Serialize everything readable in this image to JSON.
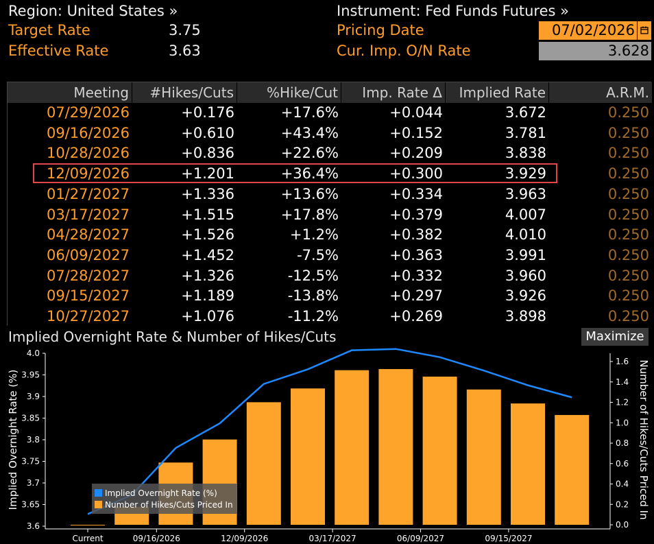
{
  "header": {
    "region_label": "Region: United States »",
    "instrument_label": "Instrument: Fed Funds Futures »",
    "target_rate_label": "Target Rate",
    "target_rate_value": "3.75",
    "effective_rate_label": "Effective Rate",
    "effective_rate_value": "3.63",
    "pricing_date_label": "Pricing Date",
    "pricing_date_value": "07/02/2026",
    "cur_imp_label": "Cur. Imp. O/N Rate",
    "cur_imp_value": "3.628",
    "calendar_icon": "calendar-icon"
  },
  "table": {
    "columns": [
      "Meeting",
      "#Hikes/Cuts",
      "%Hike/Cut",
      "Imp. Rate Δ",
      "Implied Rate",
      "A.R.M."
    ],
    "rows": [
      [
        "07/29/2026",
        "+0.176",
        "+17.6%",
        "+0.044",
        "3.672",
        "0.250"
      ],
      [
        "09/16/2026",
        "+0.610",
        "+43.4%",
        "+0.152",
        "3.781",
        "0.250"
      ],
      [
        "10/28/2026",
        "+0.836",
        "+22.6%",
        "+0.209",
        "3.838",
        "0.250"
      ],
      [
        "12/09/2026",
        "+1.201",
        "+36.4%",
        "+0.300",
        "3.929",
        "0.250"
      ],
      [
        "01/27/2027",
        "+1.336",
        "+13.6%",
        "+0.334",
        "3.963",
        "0.250"
      ],
      [
        "03/17/2027",
        "+1.515",
        "+17.8%",
        "+0.379",
        "4.007",
        "0.250"
      ],
      [
        "04/28/2027",
        "+1.526",
        "+1.2%",
        "+0.382",
        "4.010",
        "0.250"
      ],
      [
        "06/09/2027",
        "+1.452",
        "-7.5%",
        "+0.363",
        "3.991",
        "0.250"
      ],
      [
        "07/28/2027",
        "+1.326",
        "-12.5%",
        "+0.332",
        "3.960",
        "0.250"
      ],
      [
        "09/15/2027",
        "+1.189",
        "-13.8%",
        "+0.297",
        "3.926",
        "0.250"
      ],
      [
        "10/27/2027",
        "+1.076",
        "-11.2%",
        "+0.269",
        "3.898",
        "0.250"
      ]
    ],
    "highlighted_row": 3
  },
  "chart_title": "Implied Overnight Rate & Number of Hikes/Cuts",
  "maximize_label": "Maximize",
  "chart_data": {
    "type": "bar",
    "categories": [
      "Current",
      "07/29/2026",
      "09/16/2026",
      "10/28/2026",
      "12/09/2026",
      "01/27/2027",
      "03/17/2027",
      "04/28/2027",
      "06/09/2027",
      "07/28/2027",
      "09/15/2027",
      "10/27/2027"
    ],
    "x_tick_labels": [
      "Current",
      "09/16/2026",
      "12/09/2026",
      "03/17/2027",
      "06/09/2027",
      "09/15/2027"
    ],
    "series": [
      {
        "name": "Implied Overnight Rate (%)",
        "type": "line",
        "axis": "left",
        "color": "#1e88ff",
        "values": [
          3.628,
          3.672,
          3.781,
          3.838,
          3.929,
          3.963,
          4.007,
          4.01,
          3.991,
          3.96,
          3.926,
          3.898
        ]
      },
      {
        "name": "Number of Hikes/Cuts Priced In",
        "type": "bar",
        "axis": "right",
        "color": "#ffa42b",
        "values": [
          0.0,
          0.176,
          0.61,
          0.836,
          1.201,
          1.336,
          1.515,
          1.526,
          1.452,
          1.326,
          1.189,
          1.076
        ]
      }
    ],
    "ylabel": "Implied Overnight Rate (%)",
    "y2label": "Number of Hikes/Cuts Priced In",
    "ylim": [
      3.6,
      4.0
    ],
    "yticks": [
      "3.6",
      "3.65",
      "3.7",
      "3.75",
      "3.8",
      "3.85",
      "3.9",
      "3.95",
      "4.0"
    ],
    "y2lim": [
      0.0,
      1.6
    ],
    "y2ticks": [
      "0.0",
      "0.2",
      "0.4",
      "0.6",
      "0.8",
      "1.0",
      "1.2",
      "1.4",
      "1.6"
    ],
    "legend": "bottom-left",
    "grid": false
  }
}
